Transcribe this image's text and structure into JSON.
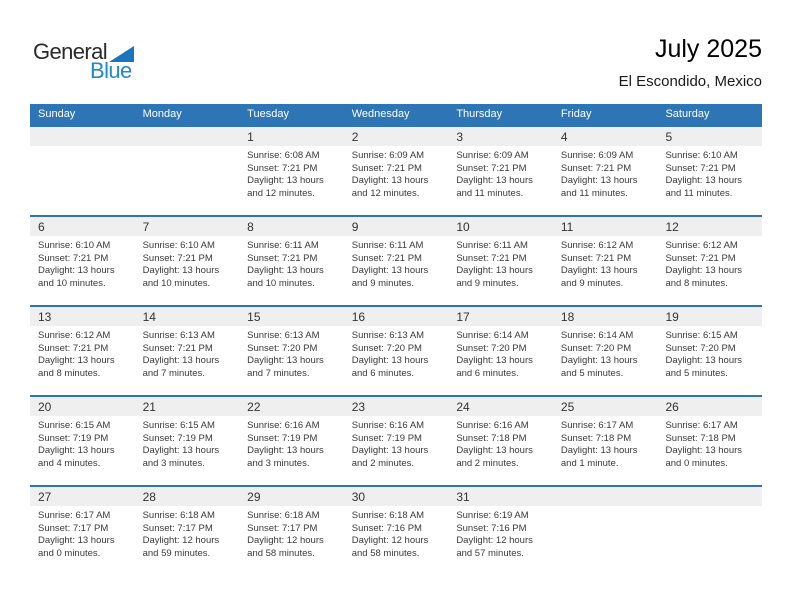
{
  "brand": {
    "general": "General",
    "blue": "Blue"
  },
  "header": {
    "title": "July 2025",
    "location": "El Escondido, Mexico"
  },
  "colors": {
    "accent_blue": "#2E75B6",
    "band_gray": "#EFEFEF",
    "logo_triangle_blue": "#1B75BC",
    "logo_blue_text": "#2089C9"
  },
  "calendar": {
    "weekdays": [
      "Sunday",
      "Monday",
      "Tuesday",
      "Wednesday",
      "Thursday",
      "Friday",
      "Saturday"
    ],
    "labels": {
      "sunrise": "Sunrise:",
      "sunset": "Sunset:",
      "daylight": "Daylight:"
    },
    "weeks": [
      [
        null,
        null,
        {
          "day": 1,
          "sunrise": "6:08 AM",
          "sunset": "7:21 PM",
          "daylight": "13 hours and 12 minutes."
        },
        {
          "day": 2,
          "sunrise": "6:09 AM",
          "sunset": "7:21 PM",
          "daylight": "13 hours and 12 minutes."
        },
        {
          "day": 3,
          "sunrise": "6:09 AM",
          "sunset": "7:21 PM",
          "daylight": "13 hours and 11 minutes."
        },
        {
          "day": 4,
          "sunrise": "6:09 AM",
          "sunset": "7:21 PM",
          "daylight": "13 hours and 11 minutes."
        },
        {
          "day": 5,
          "sunrise": "6:10 AM",
          "sunset": "7:21 PM",
          "daylight": "13 hours and 11 minutes."
        }
      ],
      [
        {
          "day": 6,
          "sunrise": "6:10 AM",
          "sunset": "7:21 PM",
          "daylight": "13 hours and 10 minutes."
        },
        {
          "day": 7,
          "sunrise": "6:10 AM",
          "sunset": "7:21 PM",
          "daylight": "13 hours and 10 minutes."
        },
        {
          "day": 8,
          "sunrise": "6:11 AM",
          "sunset": "7:21 PM",
          "daylight": "13 hours and 10 minutes."
        },
        {
          "day": 9,
          "sunrise": "6:11 AM",
          "sunset": "7:21 PM",
          "daylight": "13 hours and 9 minutes."
        },
        {
          "day": 10,
          "sunrise": "6:11 AM",
          "sunset": "7:21 PM",
          "daylight": "13 hours and 9 minutes."
        },
        {
          "day": 11,
          "sunrise": "6:12 AM",
          "sunset": "7:21 PM",
          "daylight": "13 hours and 9 minutes."
        },
        {
          "day": 12,
          "sunrise": "6:12 AM",
          "sunset": "7:21 PM",
          "daylight": "13 hours and 8 minutes."
        }
      ],
      [
        {
          "day": 13,
          "sunrise": "6:12 AM",
          "sunset": "7:21 PM",
          "daylight": "13 hours and 8 minutes."
        },
        {
          "day": 14,
          "sunrise": "6:13 AM",
          "sunset": "7:21 PM",
          "daylight": "13 hours and 7 minutes."
        },
        {
          "day": 15,
          "sunrise": "6:13 AM",
          "sunset": "7:20 PM",
          "daylight": "13 hours and 7 minutes."
        },
        {
          "day": 16,
          "sunrise": "6:13 AM",
          "sunset": "7:20 PM",
          "daylight": "13 hours and 6 minutes."
        },
        {
          "day": 17,
          "sunrise": "6:14 AM",
          "sunset": "7:20 PM",
          "daylight": "13 hours and 6 minutes."
        },
        {
          "day": 18,
          "sunrise": "6:14 AM",
          "sunset": "7:20 PM",
          "daylight": "13 hours and 5 minutes."
        },
        {
          "day": 19,
          "sunrise": "6:15 AM",
          "sunset": "7:20 PM",
          "daylight": "13 hours and 5 minutes."
        }
      ],
      [
        {
          "day": 20,
          "sunrise": "6:15 AM",
          "sunset": "7:19 PM",
          "daylight": "13 hours and 4 minutes."
        },
        {
          "day": 21,
          "sunrise": "6:15 AM",
          "sunset": "7:19 PM",
          "daylight": "13 hours and 3 minutes."
        },
        {
          "day": 22,
          "sunrise": "6:16 AM",
          "sunset": "7:19 PM",
          "daylight": "13 hours and 3 minutes."
        },
        {
          "day": 23,
          "sunrise": "6:16 AM",
          "sunset": "7:19 PM",
          "daylight": "13 hours and 2 minutes."
        },
        {
          "day": 24,
          "sunrise": "6:16 AM",
          "sunset": "7:18 PM",
          "daylight": "13 hours and 2 minutes."
        },
        {
          "day": 25,
          "sunrise": "6:17 AM",
          "sunset": "7:18 PM",
          "daylight": "13 hours and 1 minute."
        },
        {
          "day": 26,
          "sunrise": "6:17 AM",
          "sunset": "7:18 PM",
          "daylight": "13 hours and 0 minutes."
        }
      ],
      [
        {
          "day": 27,
          "sunrise": "6:17 AM",
          "sunset": "7:17 PM",
          "daylight": "13 hours and 0 minutes."
        },
        {
          "day": 28,
          "sunrise": "6:18 AM",
          "sunset": "7:17 PM",
          "daylight": "12 hours and 59 minutes."
        },
        {
          "day": 29,
          "sunrise": "6:18 AM",
          "sunset": "7:17 PM",
          "daylight": "12 hours and 58 minutes."
        },
        {
          "day": 30,
          "sunrise": "6:18 AM",
          "sunset": "7:16 PM",
          "daylight": "12 hours and 58 minutes."
        },
        {
          "day": 31,
          "sunrise": "6:19 AM",
          "sunset": "7:16 PM",
          "daylight": "12 hours and 57 minutes."
        },
        null,
        null
      ]
    ]
  }
}
